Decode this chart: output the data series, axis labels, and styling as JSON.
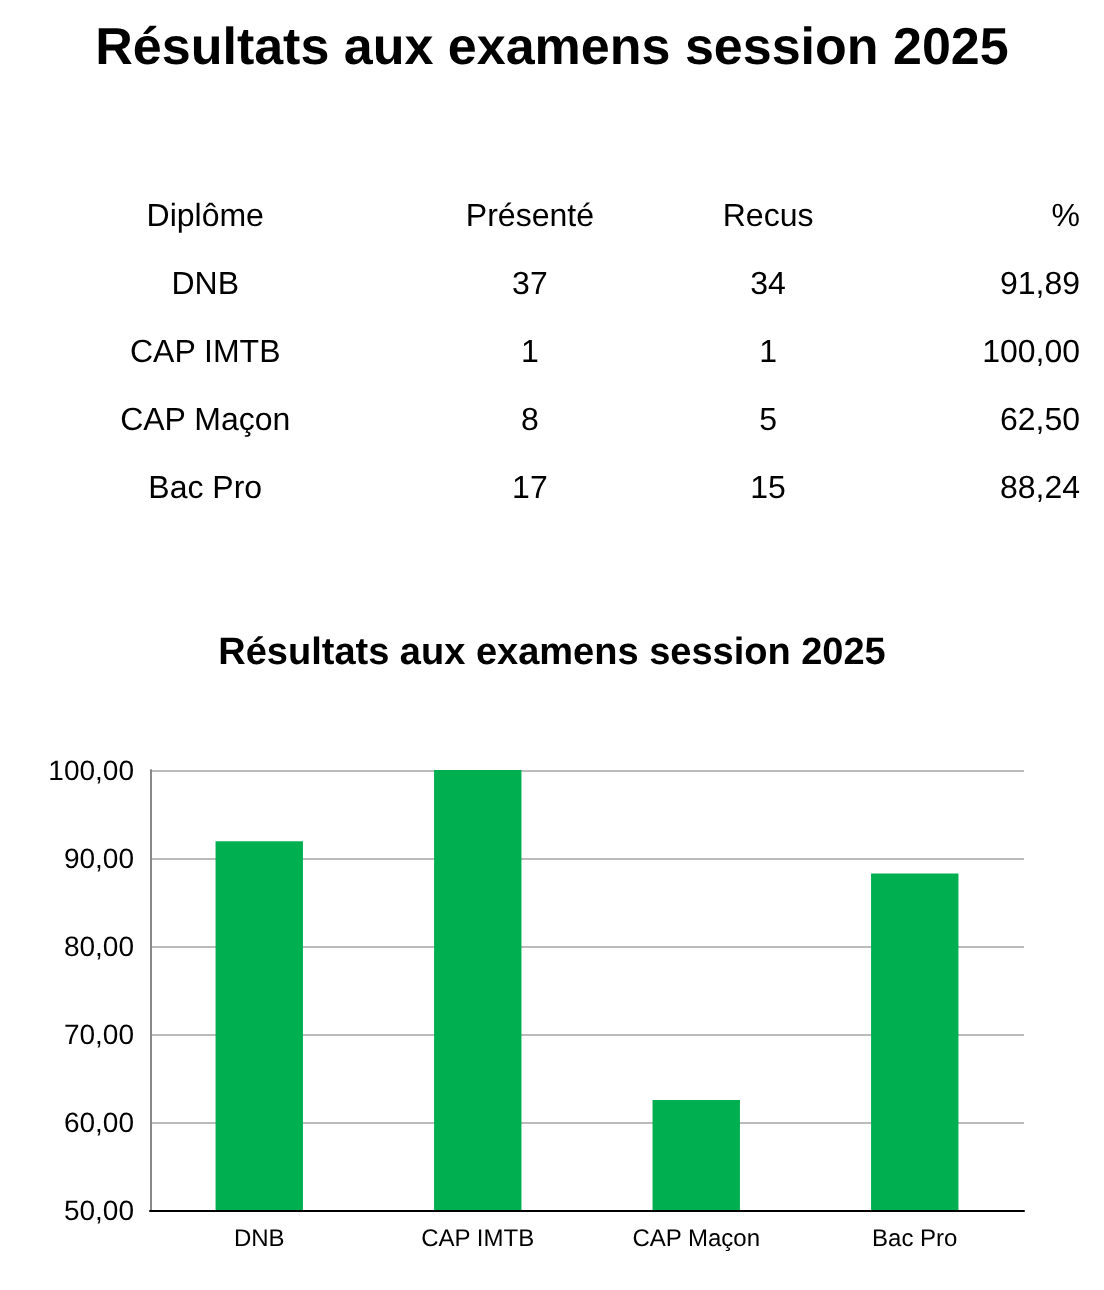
{
  "chart_data": [
    {
      "type": "other",
      "title": "Résultats aux examens session 2025",
      "xlabel": "Diplôme",
      "categories": [
        "DNB",
        "CAP IMTB",
        "CAP Maçon",
        "Bac Pro"
      ],
      "series": [
        {
          "name": "Présenté",
          "values": [
            37,
            1,
            8,
            17
          ]
        },
        {
          "name": "Recus",
          "values": [
            34,
            1,
            5,
            15
          ]
        },
        {
          "name": "%",
          "values": [
            91.89,
            100,
            62.5,
            88.24
          ],
          "value_labels": [
            "91,89",
            "100,00",
            "62,50",
            "88,24"
          ]
        }
      ],
      "data_labels": true
    },
    {
      "type": "bar",
      "title": "Résultats aux examens session 2025",
      "categories": [
        "DNB",
        "CAP IMTB",
        "CAP Maçon",
        "Bac Pro"
      ],
      "values": [
        91.89,
        100,
        62.5,
        88.24
      ],
      "color": "#00b050",
      "ylim": [
        50,
        100
      ],
      "yticks": [
        {
          "value": 50,
          "label": "50,00"
        },
        {
          "value": 60,
          "label": "60,00"
        },
        {
          "value": 70,
          "label": "70,00"
        },
        {
          "value": 80,
          "label": "80,00"
        },
        {
          "value": 90,
          "label": "90,00"
        },
        {
          "value": 100,
          "label": "100,00"
        }
      ],
      "grid": "y"
    }
  ]
}
